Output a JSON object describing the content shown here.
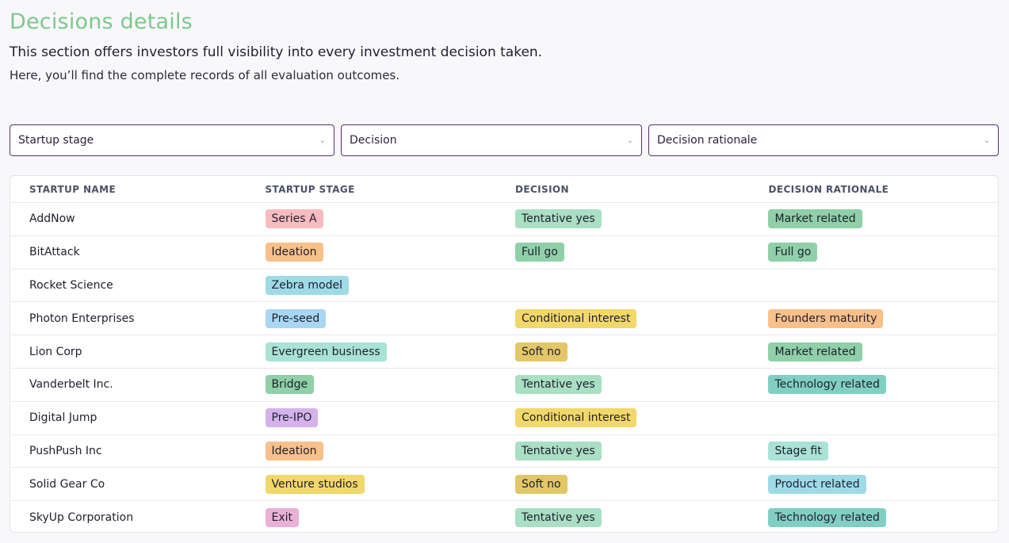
{
  "header": {
    "title": "Decisions details",
    "subtitle": "This section offers investors full visibility into every investment decision taken.",
    "description": "Here, you’ll find the complete records of all evaluation outcomes."
  },
  "filters": {
    "stage": "Startup stage",
    "decision": "Decision",
    "rationale": "Decision rationale"
  },
  "table": {
    "headers": [
      "STARTUP NAME",
      "STARTUP STAGE",
      "DECISION",
      "DECISION RATIONALE"
    ],
    "rows": [
      {
        "name": "AddNow",
        "stage": "Series A",
        "stage_color": "#f8bcc0",
        "decision": "Tentative yes",
        "decision_color": "#a9dfc3",
        "rationale": "Market related",
        "rationale_color": "#8fd0a8"
      },
      {
        "name": "BitAttack",
        "stage": "Ideation",
        "stage_color": "#f9c08a",
        "decision": "Full go",
        "decision_color": "#8fd0a8",
        "rationale": "Full go",
        "rationale_color": "#8fd0a8"
      },
      {
        "name": "Rocket Science",
        "stage": "Zebra model",
        "stage_color": "#9edbe6",
        "decision": "",
        "decision_color": "",
        "rationale": "",
        "rationale_color": ""
      },
      {
        "name": "Photon Enterprises",
        "stage": "Pre-seed",
        "stage_color": "#a8d6f4",
        "decision": "Conditional interest",
        "decision_color": "#f2d76a",
        "rationale": "Founders maturity",
        "rationale_color": "#f9c08a"
      },
      {
        "name": "Lion Corp",
        "stage": "Evergreen business",
        "stage_color": "#a9e3d6",
        "decision": "Soft no",
        "decision_color": "#e3c668",
        "rationale": "Market related",
        "rationale_color": "#8fd0a8"
      },
      {
        "name": "Vanderbelt Inc.",
        "stage": "Bridge",
        "stage_color": "#8fd0a8",
        "decision": "Tentative yes",
        "decision_color": "#a9dfc3",
        "rationale": "Technology related",
        "rationale_color": "#80cfc2"
      },
      {
        "name": "Digital Jump",
        "stage": "Pre-IPO",
        "stage_color": "#d4b3ec",
        "decision": "Conditional interest",
        "decision_color": "#f2d76a",
        "rationale": "",
        "rationale_color": ""
      },
      {
        "name": "PushPush Inc",
        "stage": "Ideation",
        "stage_color": "#f9c08a",
        "decision": "Tentative yes",
        "decision_color": "#a9dfc3",
        "rationale": "Stage fit",
        "rationale_color": "#a9e3d6"
      },
      {
        "name": "Solid Gear Co",
        "stage": "Venture studios",
        "stage_color": "#f2d76a",
        "decision": "Soft no",
        "decision_color": "#e3c668",
        "rationale": "Product related",
        "rationale_color": "#9edbe6"
      },
      {
        "name": "SkyUp Corporation",
        "stage": "Exit",
        "stage_color": "#eab0d6",
        "decision": "Tentative yes",
        "decision_color": "#a9dfc3",
        "rationale": "Technology related",
        "rationale_color": "#80cfc2"
      }
    ]
  },
  "colors": {
    "title": "#7cc98a",
    "filter_border": "#5a2e6e"
  },
  "icons": {
    "dropdown": "chevron-down-icon"
  }
}
